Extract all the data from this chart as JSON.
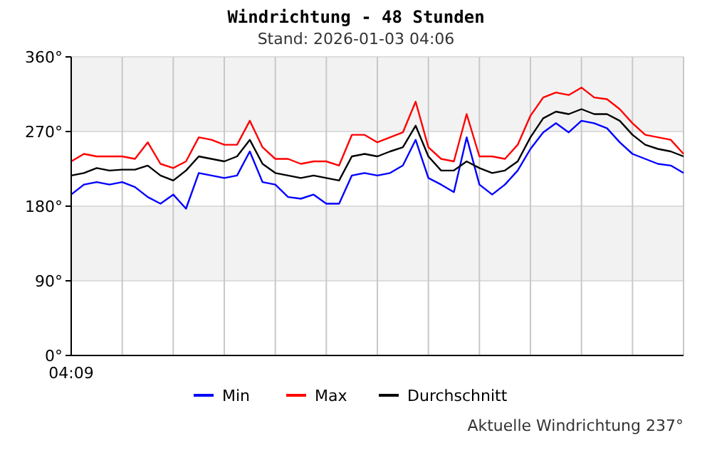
{
  "chart_data": {
    "type": "line",
    "title": "Windrichtung - 48 Stunden",
    "subtitle": "Stand: 2026-01-03 04:06",
    "categories": [
      null,
      null,
      null,
      null,
      null,
      null,
      null,
      null,
      null,
      null,
      null,
      null,
      null,
      null,
      null,
      null,
      null,
      null,
      null,
      null,
      null,
      null,
      null,
      null,
      null,
      null,
      null,
      null,
      null,
      null,
      null,
      null,
      null,
      null,
      null,
      null,
      null,
      null,
      null,
      null,
      null,
      null,
      null,
      null,
      null,
      null,
      null,
      null,
      null
    ],
    "series": [
      {
        "name": "Min",
        "color": "#0000ff",
        "values": [
          194,
          206,
          209,
          206,
          209,
          203,
          191,
          183,
          194,
          177,
          220,
          217,
          214,
          217,
          246,
          209,
          206,
          191,
          189,
          194,
          183,
          183,
          217,
          220,
          217,
          220,
          229,
          260,
          214,
          206,
          197,
          263,
          206,
          194,
          206,
          223,
          249,
          269,
          280,
          269,
          283,
          280,
          274,
          257,
          243,
          237,
          231,
          229,
          220
        ]
      },
      {
        "name": "Max",
        "color": "#ff0000",
        "values": [
          234,
          243,
          240,
          240,
          240,
          237,
          257,
          231,
          226,
          234,
          263,
          260,
          254,
          254,
          283,
          251,
          237,
          237,
          231,
          234,
          234,
          229,
          266,
          266,
          257,
          263,
          269,
          306,
          251,
          237,
          234,
          291,
          240,
          240,
          237,
          254,
          289,
          311,
          317,
          314,
          323,
          311,
          309,
          297,
          280,
          266,
          263,
          260,
          243
        ]
      },
      {
        "name": "Durchschnitt",
        "color": "#000000",
        "values": [
          217,
          220,
          226,
          223,
          224,
          224,
          229,
          217,
          211,
          223,
          240,
          237,
          234,
          240,
          260,
          231,
          220,
          217,
          214,
          217,
          214,
          211,
          240,
          243,
          240,
          246,
          251,
          277,
          240,
          223,
          223,
          234,
          226,
          220,
          223,
          234,
          263,
          286,
          294,
          291,
          297,
          291,
          291,
          283,
          266,
          254,
          249,
          246,
          240
        ]
      }
    ],
    "ylim": [
      0,
      360
    ],
    "yticks": [
      {
        "value": 0,
        "label": "0°"
      },
      {
        "value": 90,
        "label": "90°"
      },
      {
        "value": 180,
        "label": "180°"
      },
      {
        "value": 270,
        "label": "270°"
      },
      {
        "value": 360,
        "label": "360°"
      }
    ],
    "grid": true,
    "legend": "bottom",
    "marker": "none",
    "line_style": "solid",
    "annotations": [
      "04:09",
      "Aktuelle Windrichtung 237°"
    ]
  }
}
